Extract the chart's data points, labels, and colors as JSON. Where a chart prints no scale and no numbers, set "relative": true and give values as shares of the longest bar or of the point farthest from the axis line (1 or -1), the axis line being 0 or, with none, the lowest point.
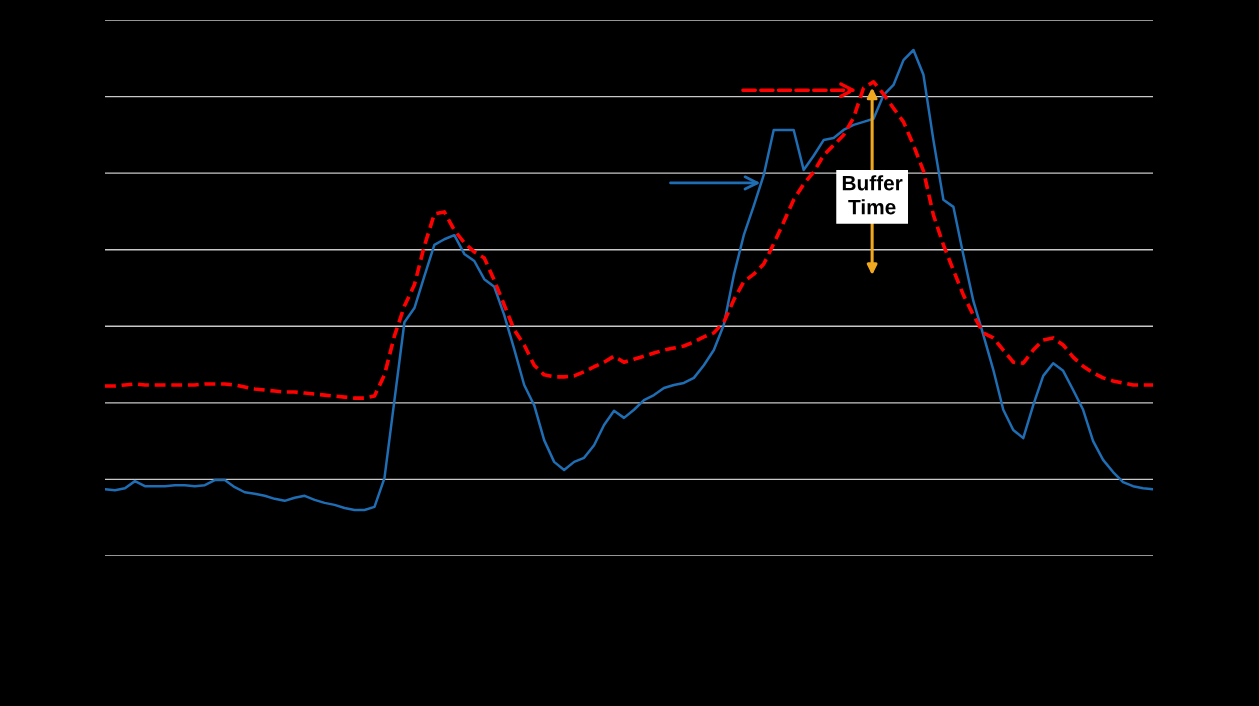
{
  "chart_data": {
    "type": "line",
    "relative": true,
    "grid": "y",
    "tick_labels": false,
    "categories": [
      null,
      null,
      null,
      null,
      null,
      null,
      null,
      null,
      null,
      null,
      null,
      null,
      null,
      null,
      null,
      null,
      null,
      null,
      null,
      null,
      null,
      null,
      null,
      null,
      null,
      null,
      null,
      null,
      null,
      null,
      null,
      null,
      null,
      null,
      null,
      null,
      null,
      null,
      null,
      null,
      null,
      null,
      null,
      null,
      null,
      null,
      null,
      null,
      null,
      null,
      null,
      null,
      null,
      null,
      null,
      null,
      null,
      null,
      null,
      null,
      null,
      null,
      null,
      null,
      null,
      null,
      null,
      null,
      null,
      null,
      null,
      null,
      null,
      null,
      null,
      null,
      null,
      null,
      null,
      null,
      null,
      null,
      null,
      null,
      null,
      null,
      null,
      null,
      null,
      null,
      null,
      null,
      null,
      null,
      null,
      null,
      null,
      null,
      null,
      null,
      null,
      null,
      null,
      null,
      null,
      null
    ],
    "annotations": [
      "Buffer Time"
    ],
    "series": [
      {
        "color": "#1f6db3",
        "line_style": "solid",
        "values": [
          0.132,
          0.13,
          0.134,
          0.148,
          0.138,
          0.138,
          0.138,
          0.14,
          0.14,
          0.138,
          0.14,
          0.15,
          0.15,
          0.136,
          0.126,
          0.123,
          0.119,
          0.113,
          0.109,
          0.115,
          0.119,
          0.111,
          0.105,
          0.101,
          0.095,
          0.091,
          0.091,
          0.097,
          0.154,
          0.308,
          0.462,
          0.49,
          0.553,
          0.615,
          0.626,
          0.634,
          0.597,
          0.583,
          0.547,
          0.532,
          0.476,
          0.409,
          0.338,
          0.298,
          0.229,
          0.186,
          0.17,
          0.186,
          0.194,
          0.219,
          0.259,
          0.287,
          0.273,
          0.289,
          0.308,
          0.318,
          0.332,
          0.338,
          0.342,
          0.352,
          0.377,
          0.407,
          0.457,
          0.555,
          0.634,
          0.692,
          0.753,
          0.842,
          0.842,
          0.842,
          0.763,
          0.791,
          0.822,
          0.826,
          0.842,
          0.852,
          0.858,
          0.864,
          0.911,
          0.931,
          0.98,
          1.0,
          0.951,
          0.822,
          0.704,
          0.69,
          0.595,
          0.504,
          0.437,
          0.368,
          0.289,
          0.249,
          0.233,
          0.298,
          0.356,
          0.381,
          0.366,
          0.328,
          0.289,
          0.227,
          0.19,
          0.166,
          0.146,
          0.138,
          0.134,
          0.132
        ]
      },
      {
        "color": "#ff0000",
        "line_style": "dashed",
        "values": [
          0.336,
          0.336,
          0.338,
          0.34,
          0.338,
          0.338,
          0.338,
          0.338,
          0.338,
          0.338,
          0.34,
          0.34,
          0.34,
          0.338,
          0.334,
          0.33,
          0.328,
          0.326,
          0.324,
          0.324,
          0.322,
          0.32,
          0.318,
          0.316,
          0.314,
          0.312,
          0.312,
          0.316,
          0.358,
          0.435,
          0.494,
          0.536,
          0.613,
          0.676,
          0.68,
          0.644,
          0.619,
          0.601,
          0.589,
          0.545,
          0.496,
          0.447,
          0.417,
          0.377,
          0.358,
          0.354,
          0.354,
          0.356,
          0.364,
          0.374,
          0.383,
          0.395,
          0.383,
          0.389,
          0.395,
          0.401,
          0.407,
          0.411,
          0.415,
          0.423,
          0.433,
          0.441,
          0.462,
          0.506,
          0.542,
          0.557,
          0.577,
          0.617,
          0.66,
          0.704,
          0.735,
          0.759,
          0.792,
          0.812,
          0.832,
          0.866,
          0.925,
          0.937,
          0.913,
          0.885,
          0.858,
          0.812,
          0.761,
          0.674,
          0.615,
          0.565,
          0.516,
          0.476,
          0.441,
          0.431,
          0.407,
          0.383,
          0.381,
          0.407,
          0.427,
          0.431,
          0.417,
          0.393,
          0.375,
          0.362,
          0.352,
          0.346,
          0.342,
          0.338,
          0.338,
          0.338
        ]
      }
    ]
  }
}
